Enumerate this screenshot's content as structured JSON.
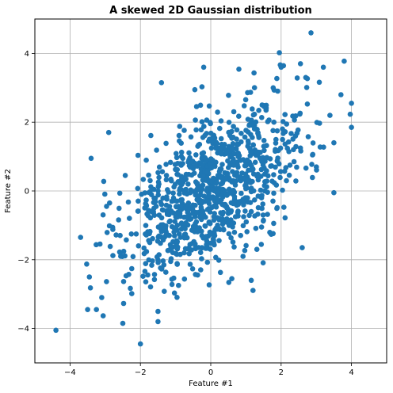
{
  "chart_data": {
    "type": "scatter",
    "title": "A skewed 2D Gaussian distribution",
    "xlabel": "Feature #1",
    "ylabel": "Feature #2",
    "xlim": [
      -5,
      5
    ],
    "ylim": [
      -5,
      5
    ],
    "xticks": [
      -4,
      -2,
      0,
      2,
      4
    ],
    "yticks": [
      -4,
      -2,
      0,
      2,
      4
    ],
    "grid": true,
    "marker_color": "#1f77b4",
    "outliers": [
      {
        "x": -4.4,
        "y": -4.05
      },
      {
        "x": -2.0,
        "y": -4.45
      },
      {
        "x": 2.85,
        "y": 4.6
      },
      {
        "x": 1.95,
        "y": 4.02
      },
      {
        "x": -1.4,
        "y": 3.15
      },
      {
        "x": -0.2,
        "y": 3.6
      },
      {
        "x": -3.5,
        "y": -3.45
      },
      {
        "x": -3.25,
        "y": -3.45
      },
      {
        "x": -2.5,
        "y": -3.85
      },
      {
        "x": -1.5,
        "y": -3.8
      },
      {
        "x": 4.0,
        "y": 2.55
      },
      {
        "x": 4.0,
        "y": 1.85
      },
      {
        "x": 3.7,
        "y": 2.8
      },
      {
        "x": 3.2,
        "y": 3.6
      },
      {
        "x": 2.55,
        "y": 3.7
      },
      {
        "x": -2.9,
        "y": 1.7
      },
      {
        "x": -3.4,
        "y": 0.95
      },
      {
        "x": -3.7,
        "y": -1.35
      },
      {
        "x": 2.6,
        "y": -1.65
      },
      {
        "x": 3.5,
        "y": -0.05
      },
      {
        "x": 1.15,
        "y": -2.6
      },
      {
        "x": 0.6,
        "y": -2.55
      },
      {
        "x": -3.45,
        "y": -2.5
      },
      {
        "x": -3.1,
        "y": -3.1
      },
      {
        "x": 3.5,
        "y": 1.4
      },
      {
        "x": 2.0,
        "y": 3.6
      },
      {
        "x": 2.7,
        "y": 3.3
      }
    ],
    "bulk": {
      "n": 1000,
      "mean": [
        0,
        0
      ],
      "std": [
        1.3,
        1.3
      ],
      "correlation": 0.55,
      "seed": 42
    }
  }
}
